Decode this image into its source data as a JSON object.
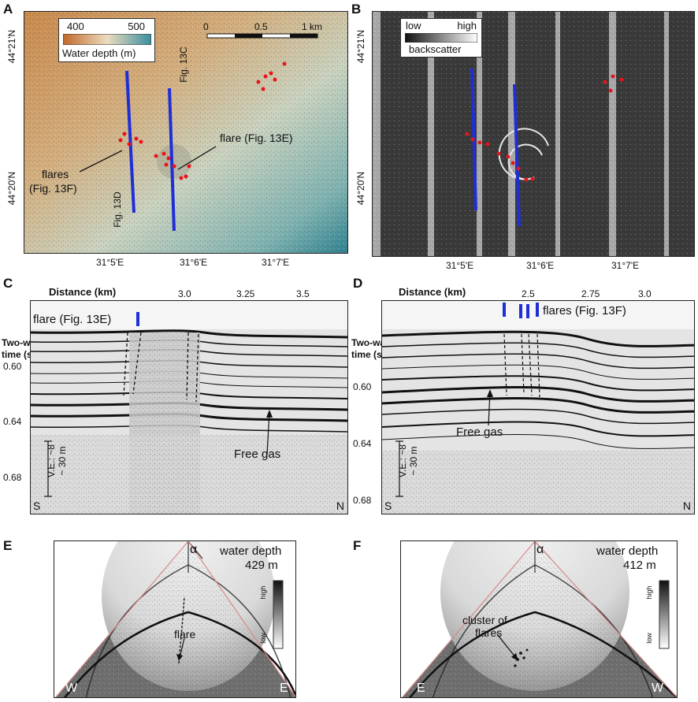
{
  "panels": {
    "a": "A",
    "b": "B",
    "c": "C",
    "d": "D",
    "e": "E",
    "f": "F"
  },
  "map_a": {
    "lat_top": "44°21'N",
    "lat_bottom": "44°20'N",
    "lon": [
      "31°5'E",
      "31°6'E",
      "31°7'E"
    ],
    "legend_min": "400",
    "legend_max": "500",
    "legend_title": "Water depth (m)",
    "scale_ticks": [
      "0",
      "0.5",
      "1 km"
    ],
    "label_13c": "Fig. 13C",
    "label_13d": "Fig. 13D",
    "flare_label": "flare (Fig. 13E)",
    "flares_label_1": "flares",
    "flares_label_2": "(Fig. 13F)",
    "colors": {
      "shallow": "#c8864a",
      "deep": "#2a7f8f",
      "line": "#1f2fd6",
      "point": "#e8141c"
    }
  },
  "map_b": {
    "lat_top": "44°21'N",
    "lat_bottom": "44°20'N",
    "lon": [
      "31°5'E",
      "31°6'E",
      "31°7'E"
    ],
    "legend_low": "low",
    "legend_high": "high",
    "legend_title": "backscatter"
  },
  "profile_c": {
    "distance_label": "Distance (km)",
    "dist_ticks": [
      "3.0",
      "3.25",
      "3.5"
    ],
    "twt_1": "Two-way",
    "twt_2": "time (s)",
    "twt_ticks": [
      "0.60",
      "0.64",
      "0.68"
    ],
    "flare_label": "flare (Fig. 13E)",
    "gas_label": "Free gas",
    "ve_1": "V.E.: ~8",
    "ve_2": "~ 30 m",
    "s": "S",
    "n": "N"
  },
  "profile_d": {
    "distance_label": "Distance (km)",
    "dist_ticks": [
      "2.5",
      "2.75",
      "3.0"
    ],
    "twt_1": "Two-way",
    "twt_2": "time (s)",
    "twt_ticks": [
      "0.60",
      "0.64",
      "0.68"
    ],
    "flare_label": "flares (Fig. 13F)",
    "gas_label": "Free gas",
    "ve_1": "V.E.: ~8",
    "ve_2": "~ 30 m",
    "s": "S",
    "n": "N"
  },
  "echo_e": {
    "depth_1": "water depth",
    "depth_2": "429 m",
    "alpha": "α",
    "scale_high": "high",
    "scale_low": "low",
    "flare_label": "flare",
    "left": "W",
    "right": "E"
  },
  "echo_f": {
    "depth_1": "water depth",
    "depth_2": "412 m",
    "alpha": "α",
    "scale_high": "high",
    "scale_low": "low",
    "flare_1": "cluster of",
    "flare_2": "flares",
    "left": "E",
    "right": "W"
  }
}
